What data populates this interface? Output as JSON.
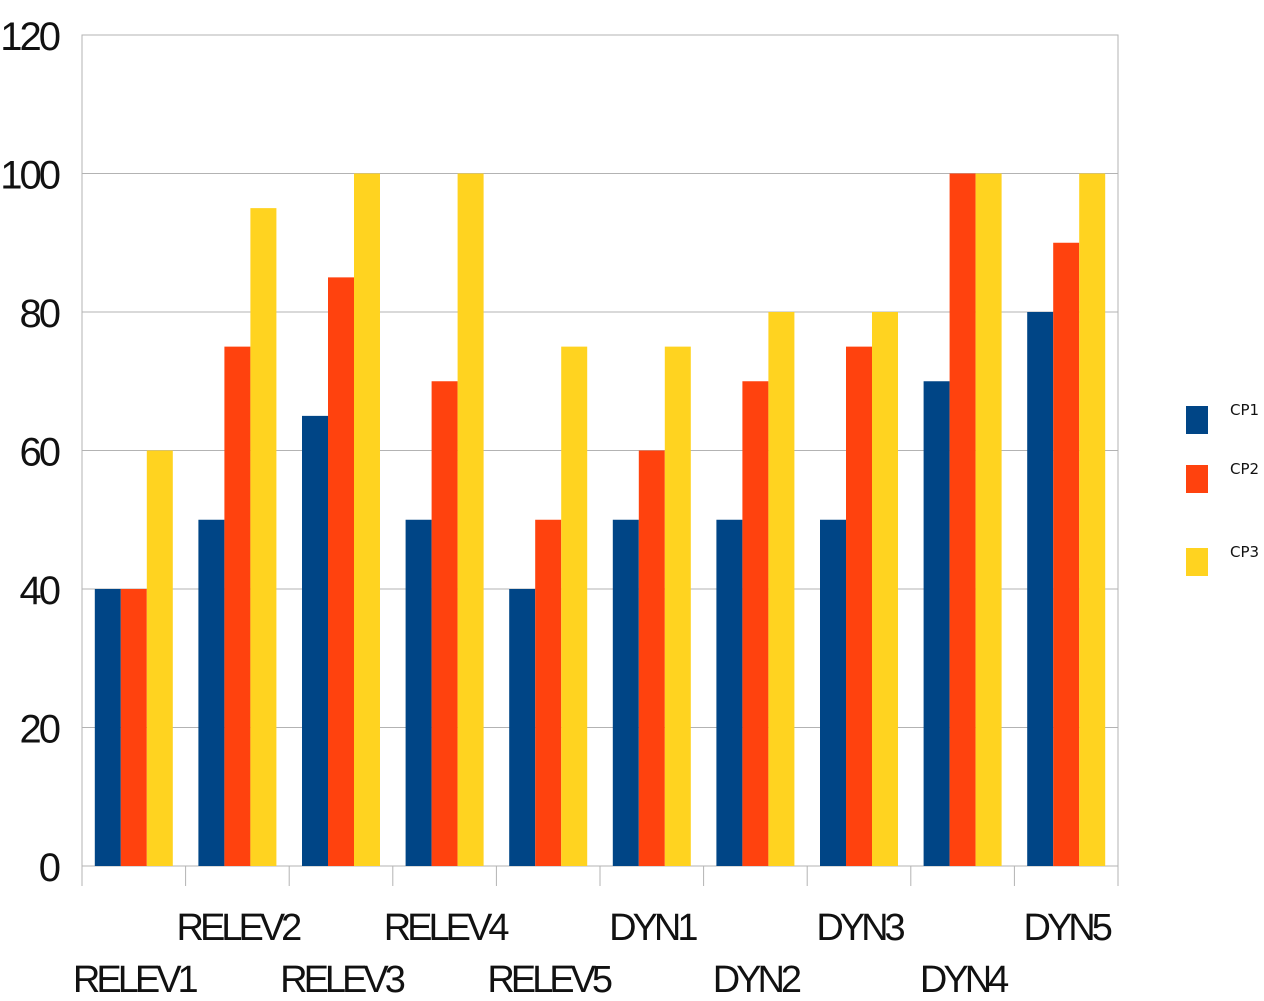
{
  "chart_data": {
    "type": "bar",
    "categories": [
      "RELEV1",
      "RELEV2",
      "RELEV3",
      "RELEV4",
      "RELEV5",
      "DYN1",
      "DYN2",
      "DYN3",
      "DYN4",
      "DYN5"
    ],
    "series": [
      {
        "name": "CP1",
        "color": "#004586",
        "values": [
          40,
          50,
          65,
          50,
          40,
          50,
          50,
          50,
          70,
          80
        ]
      },
      {
        "name": "CP2",
        "color": "#ff420e",
        "values": [
          40,
          75,
          85,
          70,
          50,
          60,
          70,
          75,
          100,
          90
        ]
      },
      {
        "name": "CP3",
        "color": "#ffd320",
        "values": [
          60,
          95,
          100,
          100,
          75,
          75,
          80,
          80,
          100,
          100
        ]
      }
    ],
    "yticks": [
      "0",
      "20",
      "40",
      "60",
      "80",
      "100",
      "120"
    ],
    "ylim": [
      0,
      120
    ],
    "grid": true,
    "legend_position": "right"
  }
}
